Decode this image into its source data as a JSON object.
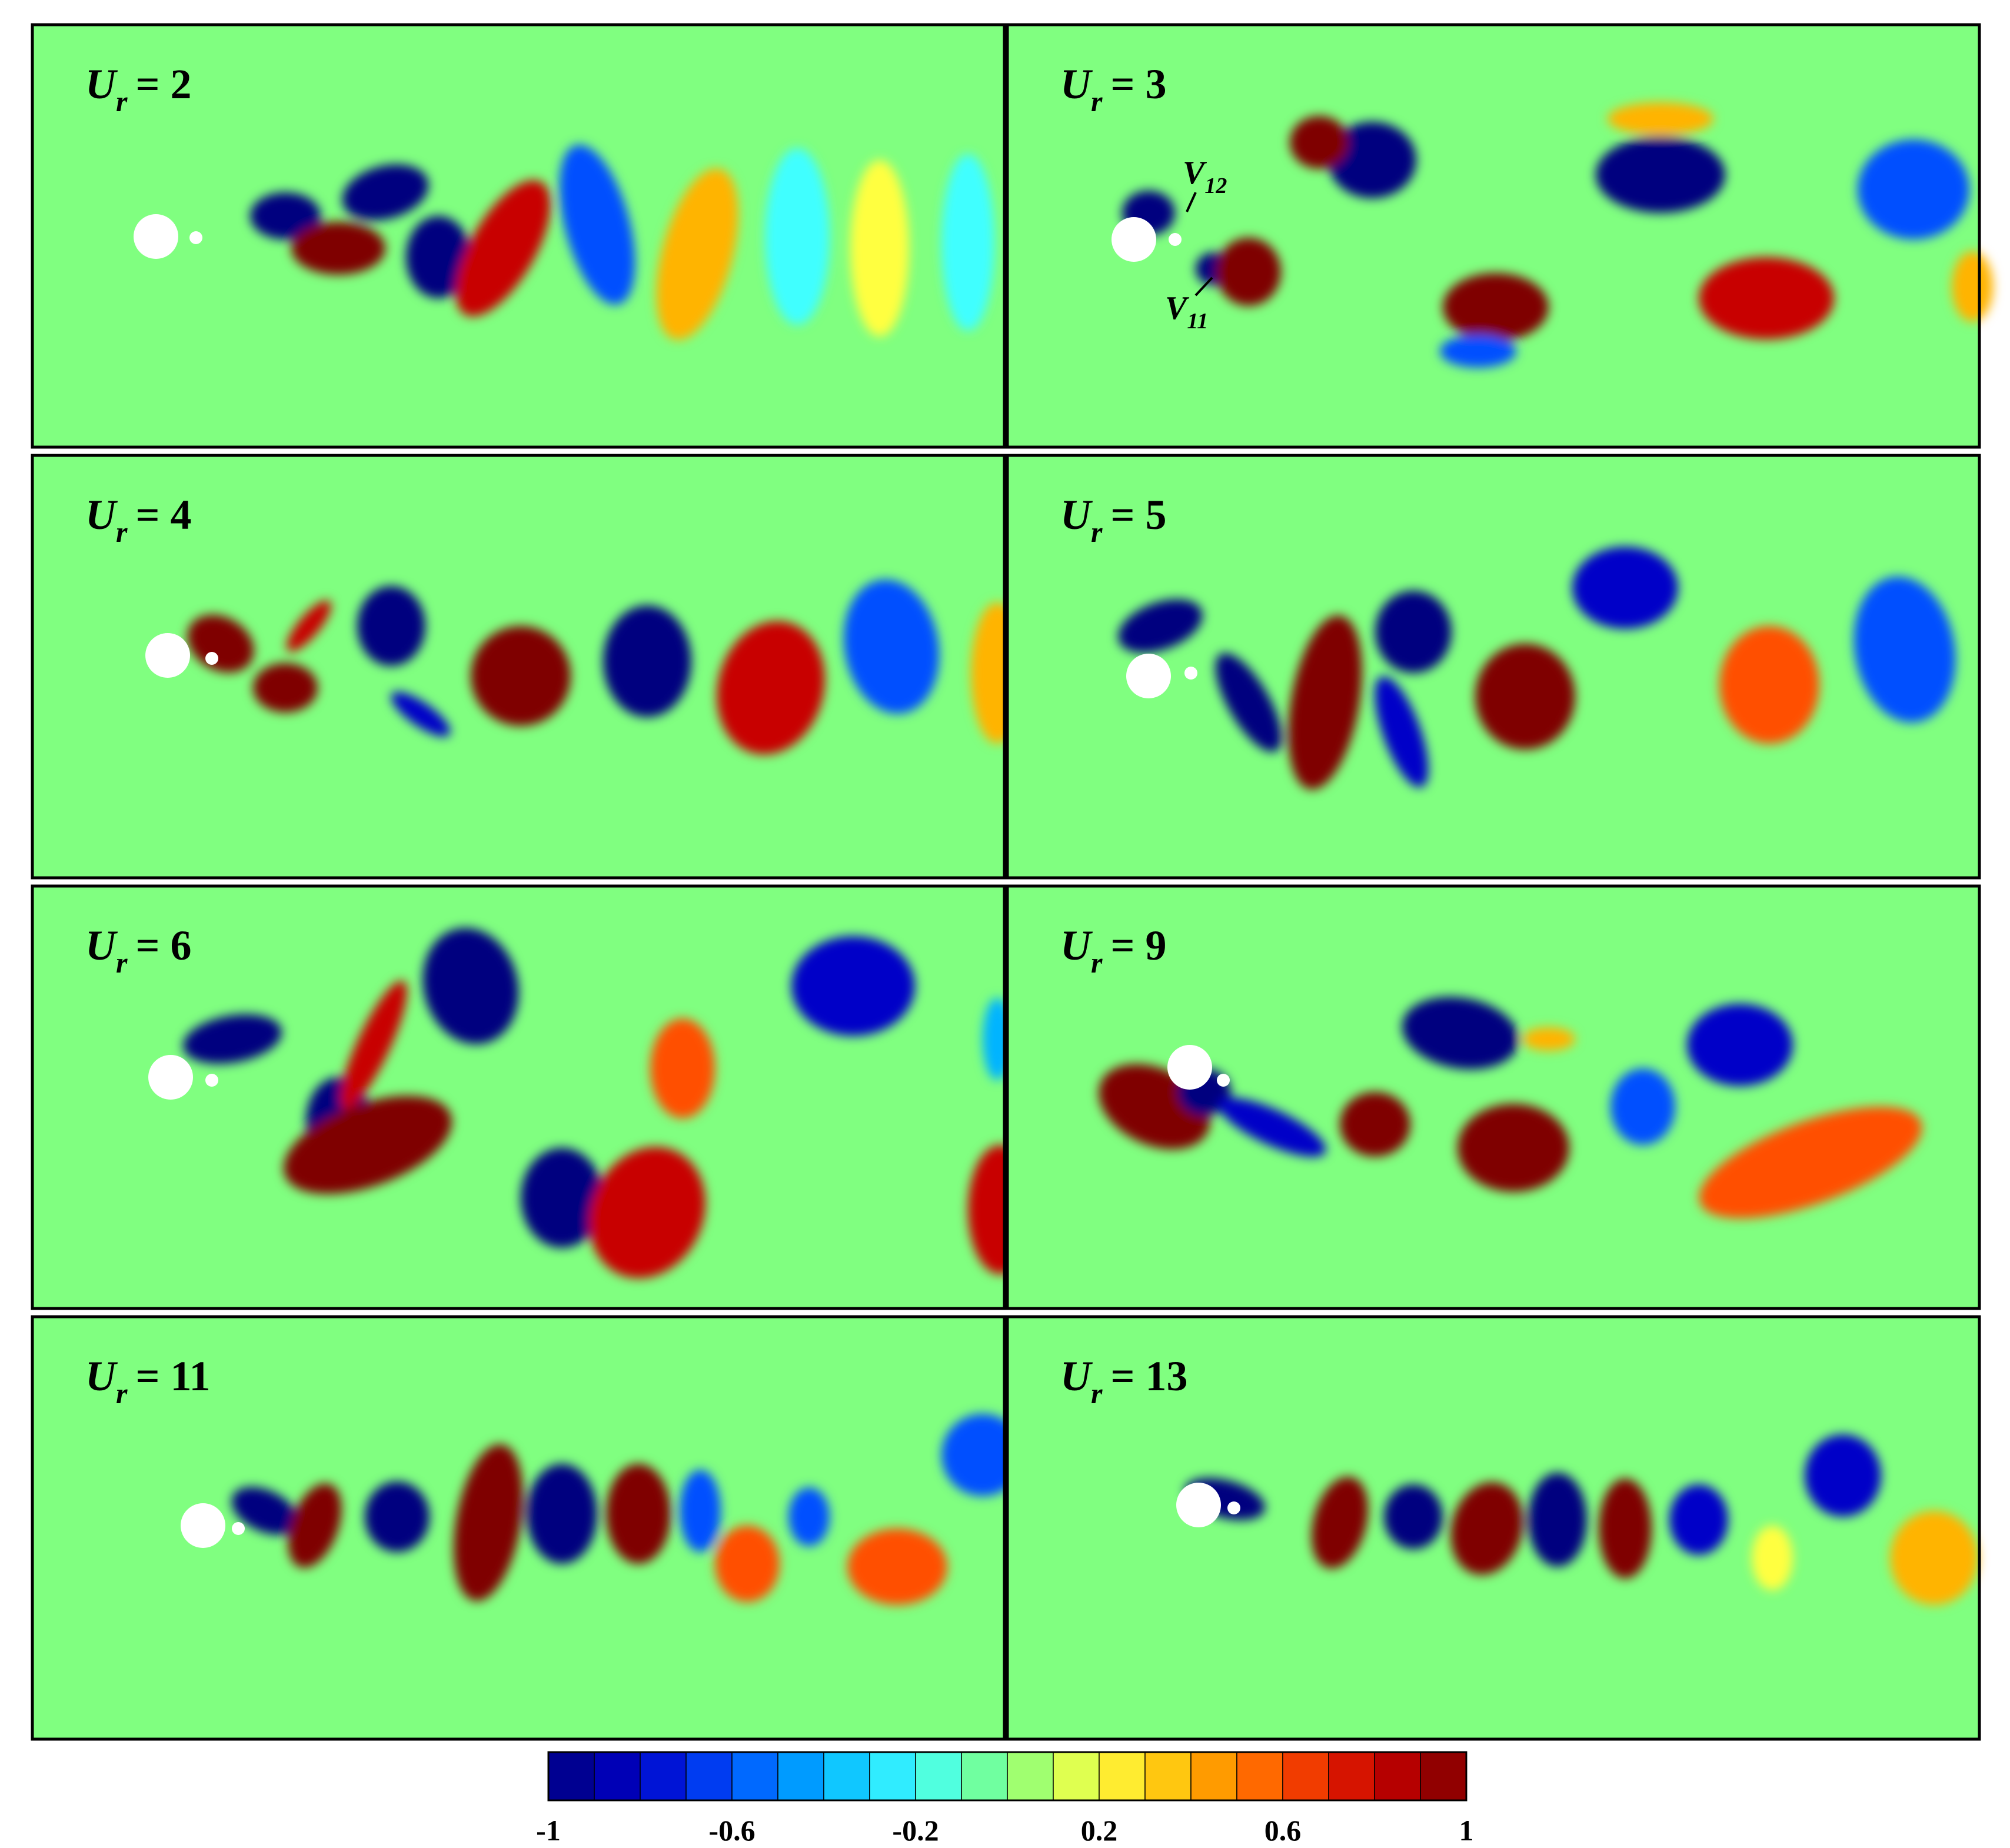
{
  "figure": {
    "panels": [
      {
        "sym": "U",
        "sub": "r",
        "value": "= 2"
      },
      {
        "sym": "U",
        "sub": "r",
        "value": "= 3"
      },
      {
        "sym": "U",
        "sub": "r",
        "value": "= 4"
      },
      {
        "sym": "U",
        "sub": "r",
        "value": "= 5"
      },
      {
        "sym": "U",
        "sub": "r",
        "value": "= 6"
      },
      {
        "sym": "U",
        "sub": "r",
        "value": "= 9"
      },
      {
        "sym": "U",
        "sub": "r",
        "value": "= 11"
      },
      {
        "sym": "U",
        "sub": "r",
        "value": "= 13"
      }
    ],
    "annotations": [
      {
        "sym": "V",
        "sub": "12"
      },
      {
        "sym": "V",
        "sub": "11"
      }
    ],
    "colorbar": {
      "min": -1,
      "max": 1,
      "levels": 20,
      "tick_labels": [
        "-1",
        "-0.6",
        "-0.2",
        "0.2",
        "0.6",
        "1"
      ],
      "colors": [
        "#00007f",
        "#0000c8",
        "#0050ff",
        "#00b4ff",
        "#40ffff",
        "#80ff80",
        "#ffff40",
        "#ffb400",
        "#ff5000",
        "#c80000",
        "#7f0000"
      ]
    },
    "colors": {
      "background": "#80ff80",
      "cylinder": "#ffffff",
      "frame": "#000000"
    }
  }
}
